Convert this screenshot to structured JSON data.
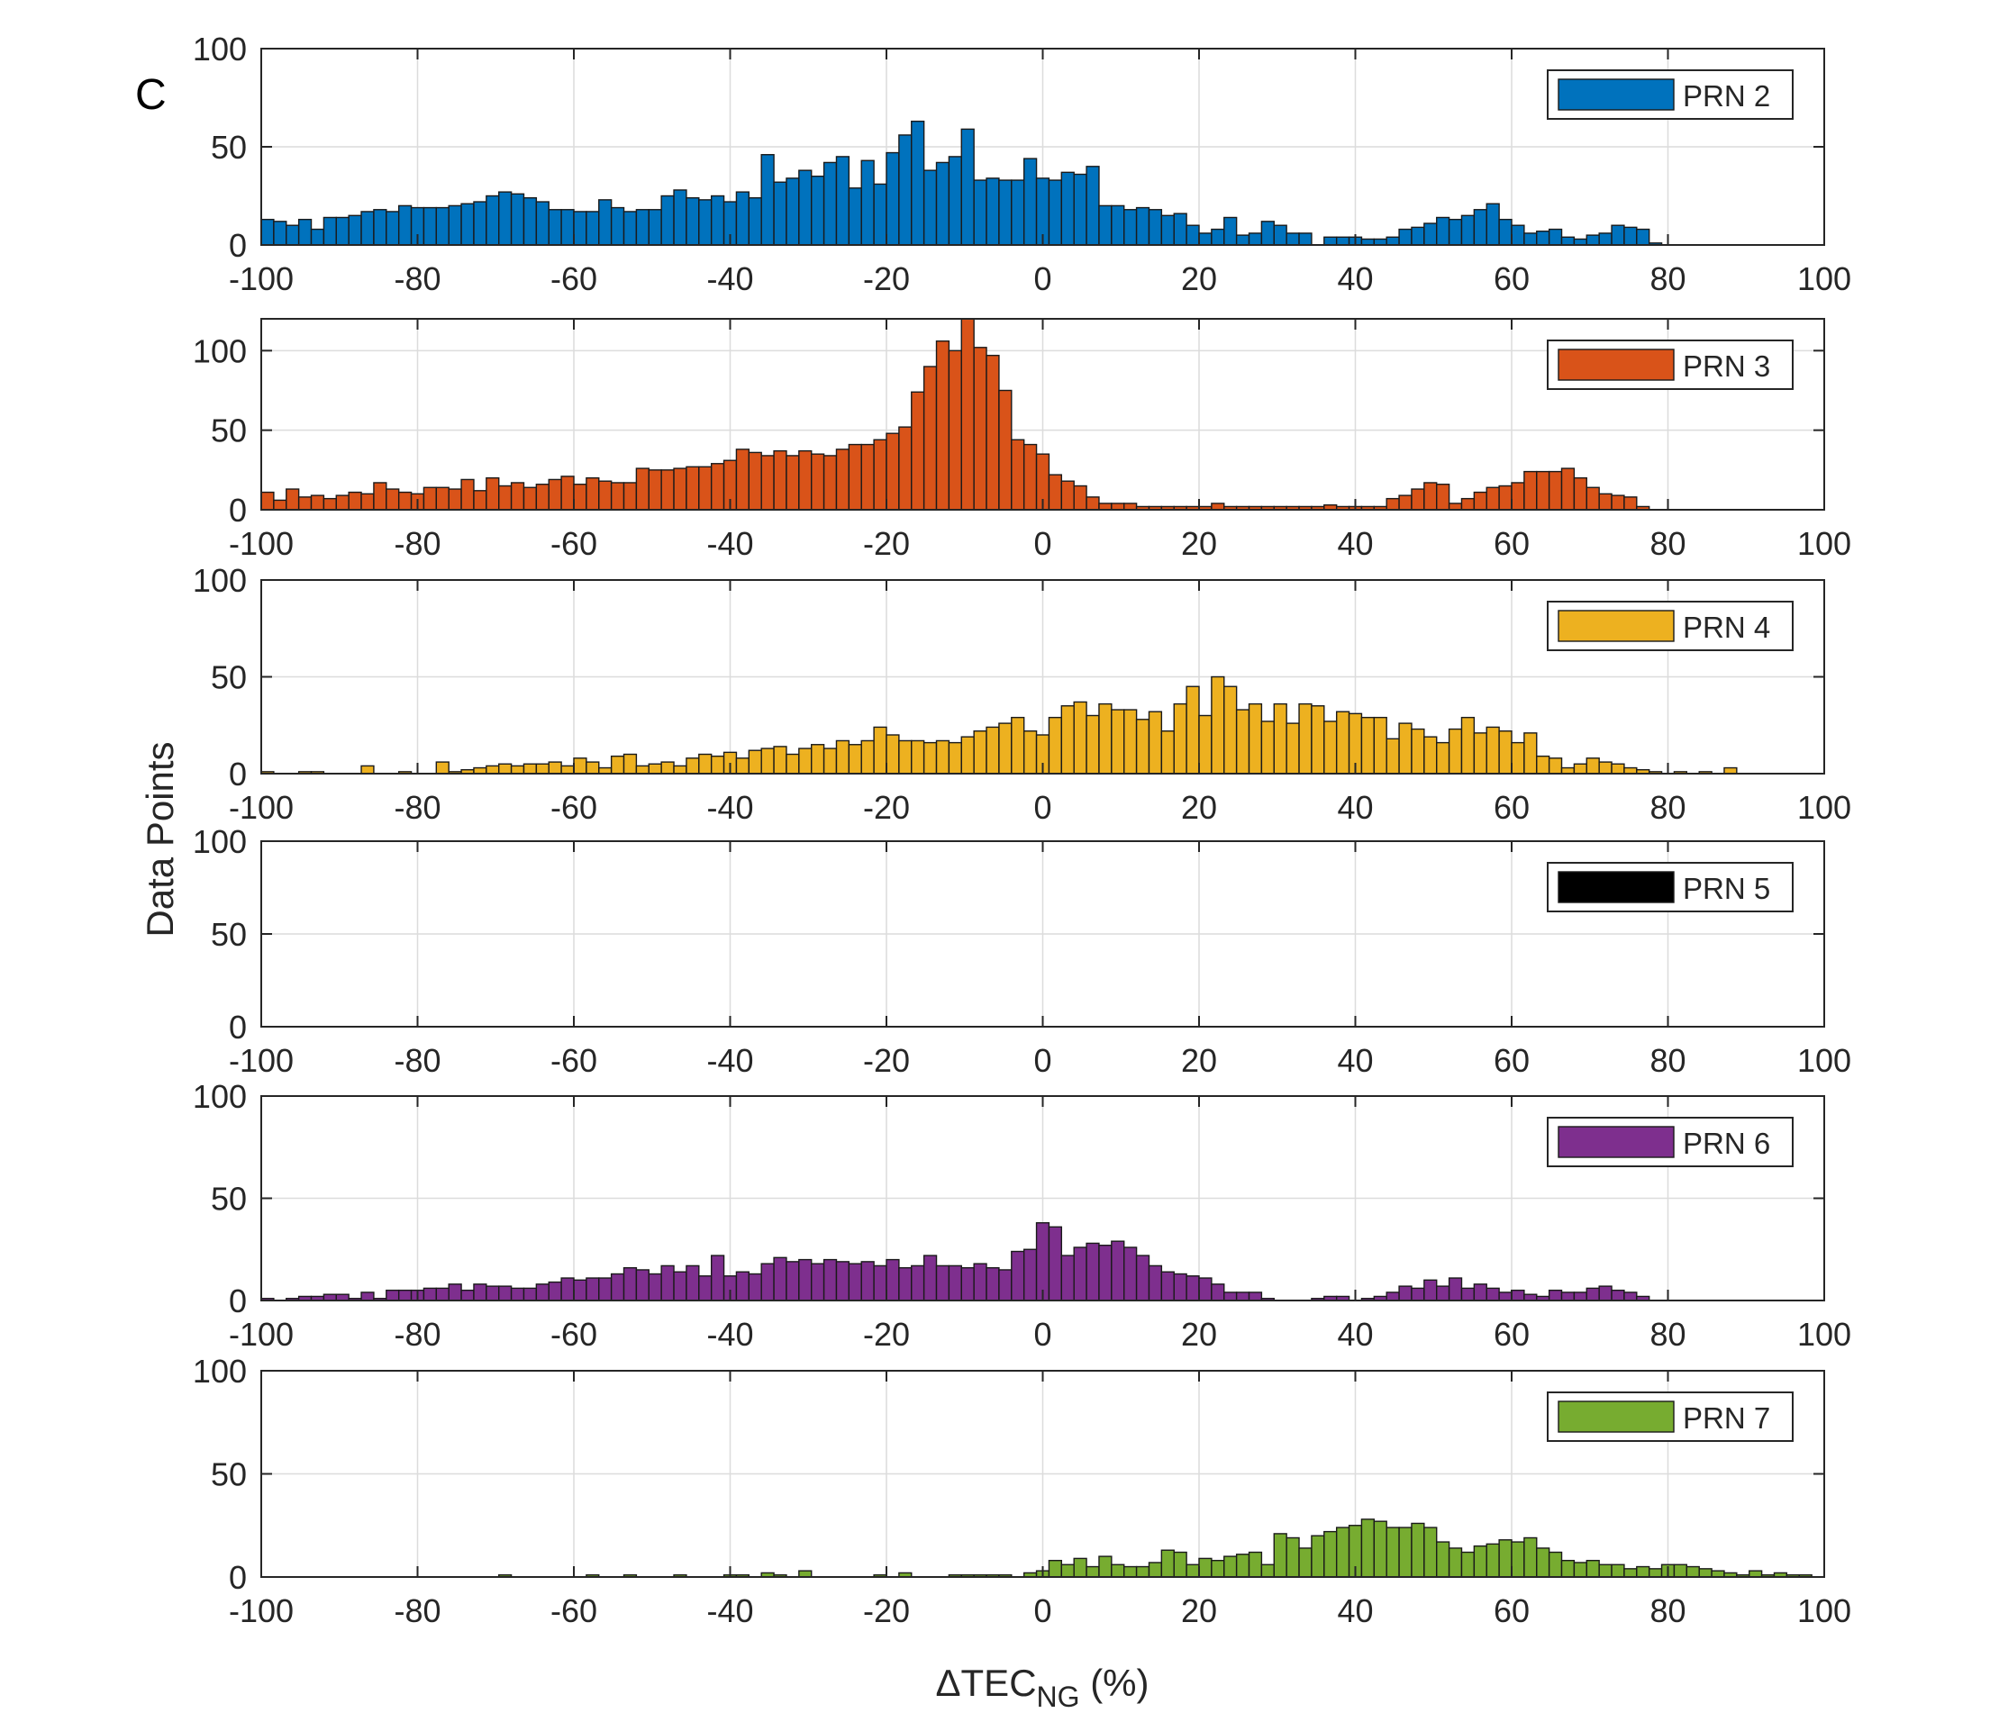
{
  "figure": {
    "panel_label": "C",
    "ylabel": "Data Points",
    "xlabel_main": "ΔTEC",
    "xlabel_sub": "NG",
    "xlabel_unit": " (%)"
  },
  "chart_data": [
    {
      "type": "bar",
      "legend": "PRN 2",
      "color": "#0072BD",
      "xlim": [
        -100,
        100
      ],
      "ylim": [
        0,
        100
      ],
      "xticks": [
        -100,
        -80,
        -60,
        -40,
        -20,
        0,
        20,
        40,
        60,
        80,
        100
      ],
      "yticks": [
        0,
        50,
        100
      ],
      "grid": true,
      "legend_position": "top-right",
      "bin_width": 1.6,
      "bin_start": -100,
      "values": [
        13,
        12,
        10,
        13,
        8,
        14,
        14,
        15,
        17,
        18,
        17,
        20,
        19,
        19,
        19,
        20,
        21,
        22,
        25,
        27,
        26,
        24,
        22,
        18,
        18,
        17,
        17,
        23,
        19,
        17,
        18,
        18,
        25,
        28,
        24,
        23,
        25,
        22,
        27,
        24,
        46,
        32,
        34,
        38,
        35,
        42,
        45,
        29,
        43,
        31,
        47,
        56,
        63,
        38,
        42,
        45,
        59,
        33,
        34,
        33,
        33,
        44,
        34,
        33,
        37,
        36,
        40,
        20,
        20,
        18,
        19,
        18,
        15,
        16,
        10,
        6,
        8,
        14,
        5,
        6,
        12,
        10,
        6,
        6,
        0,
        4,
        4,
        4,
        3,
        3,
        4,
        8,
        9,
        11,
        14,
        13,
        15,
        18,
        21,
        13,
        10,
        6,
        7,
        8,
        4,
        3,
        5,
        6,
        10,
        9,
        8,
        1
      ],
      "x_tick_labels": [
        "-100",
        "-80",
        "-60",
        "-40",
        "-20",
        "0",
        "20",
        "40",
        "60",
        "80",
        "100"
      ],
      "y_tick_labels": [
        "0",
        "50",
        "100"
      ]
    },
    {
      "type": "bar",
      "legend": "PRN 3",
      "color": "#D95319",
      "xlim": [
        -100,
        100
      ],
      "ylim": [
        0,
        120
      ],
      "xticks": [
        -100,
        -80,
        -60,
        -40,
        -20,
        0,
        20,
        40,
        60,
        80,
        100
      ],
      "yticks": [
        0,
        50,
        100
      ],
      "grid": true,
      "legend_position": "top-right",
      "bin_width": 1.6,
      "bin_start": -100,
      "values": [
        11,
        6,
        13,
        8,
        9,
        7,
        9,
        11,
        10,
        17,
        13,
        11,
        10,
        14,
        14,
        13,
        19,
        12,
        20,
        15,
        17,
        14,
        16,
        19,
        21,
        16,
        20,
        18,
        17,
        17,
        26,
        25,
        25,
        26,
        27,
        27,
        29,
        31,
        38,
        36,
        34,
        37,
        34,
        37,
        35,
        34,
        38,
        41,
        41,
        44,
        48,
        52,
        74,
        90,
        106,
        100,
        120,
        102,
        97,
        75,
        44,
        41,
        35,
        22,
        18,
        15,
        8,
        4,
        4,
        4,
        2,
        2,
        2,
        2,
        2,
        2,
        4,
        2,
        2,
        2,
        2,
        2,
        2,
        2,
        2,
        3,
        2,
        2,
        2,
        2,
        7,
        9,
        13,
        17,
        16,
        4,
        7,
        11,
        14,
        15,
        17,
        24,
        24,
        24,
        26,
        20,
        14,
        10,
        9,
        8,
        2
      ],
      "x_tick_labels": [
        "-100",
        "-80",
        "-60",
        "-40",
        "-20",
        "0",
        "20",
        "40",
        "60",
        "80",
        "100"
      ],
      "y_tick_labels": [
        "0",
        "50",
        "100"
      ]
    },
    {
      "type": "bar",
      "legend": "PRN 4",
      "color": "#EDB120",
      "xlim": [
        -100,
        100
      ],
      "ylim": [
        0,
        100
      ],
      "xticks": [
        -100,
        -80,
        -60,
        -40,
        -20,
        0,
        20,
        40,
        60,
        80,
        100
      ],
      "yticks": [
        0,
        50,
        100
      ],
      "grid": true,
      "legend_position": "top-right",
      "bin_width": 1.6,
      "bin_start": -100,
      "values": [
        1,
        0,
        0,
        1,
        1,
        0,
        0,
        0,
        4,
        0,
        0,
        1,
        0,
        0,
        6,
        1,
        2,
        3,
        4,
        5,
        4,
        5,
        5,
        6,
        4,
        8,
        6,
        3,
        9,
        10,
        4,
        5,
        6,
        4,
        8,
        10,
        9,
        11,
        8,
        12,
        13,
        14,
        10,
        13,
        15,
        13,
        17,
        15,
        17,
        24,
        20,
        17,
        17,
        16,
        17,
        16,
        19,
        22,
        24,
        26,
        29,
        22,
        20,
        29,
        35,
        37,
        30,
        36,
        33,
        33,
        28,
        32,
        22,
        36,
        45,
        30,
        50,
        45,
        33,
        36,
        27,
        36,
        26,
        36,
        35,
        27,
        32,
        31,
        29,
        29,
        18,
        26,
        23,
        19,
        16,
        23,
        29,
        21,
        24,
        22,
        16,
        21,
        9,
        8,
        3,
        5,
        8,
        6,
        5,
        3,
        2,
        1,
        0,
        1,
        0,
        1,
        0,
        3
      ],
      "x_tick_labels": [
        "-100",
        "-80",
        "-60",
        "-40",
        "-20",
        "0",
        "20",
        "40",
        "60",
        "80",
        "100"
      ],
      "y_tick_labels": [
        "0",
        "50",
        "100"
      ]
    },
    {
      "type": "bar",
      "legend": "PRN 5",
      "color": "#000000",
      "xlim": [
        -100,
        100
      ],
      "ylim": [
        0,
        100
      ],
      "xticks": [
        -100,
        -80,
        -60,
        -40,
        -20,
        0,
        20,
        40,
        60,
        80,
        100
      ],
      "yticks": [
        0,
        50,
        100
      ],
      "grid": true,
      "legend_position": "top-right",
      "bin_width": 1.6,
      "bin_start": -100,
      "values": [],
      "x_tick_labels": [
        "-100",
        "-80",
        "-60",
        "-40",
        "-20",
        "0",
        "20",
        "40",
        "60",
        "80",
        "100"
      ],
      "y_tick_labels": [
        "0",
        "50",
        "100"
      ]
    },
    {
      "type": "bar",
      "legend": "PRN 6",
      "color": "#7E2F8E",
      "xlim": [
        -100,
        100
      ],
      "ylim": [
        0,
        100
      ],
      "xticks": [
        -100,
        -80,
        -60,
        -40,
        -20,
        0,
        20,
        40,
        60,
        80,
        100
      ],
      "yticks": [
        0,
        50,
        100
      ],
      "grid": true,
      "legend_position": "top-right",
      "bin_width": 1.6,
      "bin_start": -100,
      "values": [
        1,
        0,
        1,
        2,
        2,
        3,
        3,
        1,
        4,
        1,
        5,
        5,
        5,
        6,
        6,
        8,
        5,
        8,
        7,
        7,
        6,
        6,
        8,
        9,
        11,
        10,
        11,
        11,
        13,
        16,
        15,
        13,
        17,
        14,
        17,
        12,
        22,
        12,
        14,
        13,
        18,
        21,
        19,
        20,
        18,
        20,
        19,
        18,
        19,
        17,
        20,
        16,
        17,
        22,
        17,
        17,
        16,
        18,
        16,
        15,
        24,
        25,
        38,
        36,
        22,
        26,
        28,
        27,
        29,
        26,
        22,
        17,
        14,
        13,
        12,
        11,
        8,
        4,
        4,
        4,
        1,
        0,
        0,
        0,
        1,
        2,
        2,
        0,
        1,
        2,
        4,
        7,
        6,
        10,
        7,
        11,
        6,
        8,
        6,
        4,
        5,
        3,
        2,
        5,
        4,
        4,
        6,
        7,
        5,
        4,
        2
      ],
      "x_tick_labels": [
        "-100",
        "-80",
        "-60",
        "-40",
        "-20",
        "0",
        "20",
        "40",
        "60",
        "80",
        "100"
      ],
      "y_tick_labels": [
        "0",
        "50",
        "100"
      ]
    },
    {
      "type": "bar",
      "legend": "PRN 7",
      "color": "#77AC30",
      "xlim": [
        -100,
        100
      ],
      "ylim": [
        0,
        100
      ],
      "xticks": [
        -100,
        -80,
        -60,
        -40,
        -20,
        0,
        20,
        40,
        60,
        80,
        100
      ],
      "yticks": [
        0,
        50,
        100
      ],
      "grid": true,
      "legend_position": "top-right",
      "bin_width": 1.6,
      "bin_start": -100,
      "values": [
        0,
        0,
        0,
        0,
        0,
        0,
        0,
        0,
        0,
        0,
        0,
        0,
        0,
        0,
        0,
        0,
        0,
        0,
        0,
        1,
        0,
        0,
        0,
        0,
        0,
        0,
        1,
        0,
        0,
        1,
        0,
        0,
        0,
        1,
        0,
        0,
        0,
        1,
        1,
        0,
        2,
        1,
        0,
        3,
        0,
        0,
        0,
        0,
        0,
        1,
        0,
        2,
        0,
        0,
        0,
        1,
        1,
        1,
        1,
        1,
        0,
        2,
        3,
        8,
        6,
        9,
        5,
        10,
        6,
        5,
        5,
        7,
        13,
        12,
        6,
        9,
        8,
        10,
        11,
        12,
        6,
        21,
        19,
        14,
        20,
        22,
        24,
        25,
        28,
        27,
        24,
        24,
        26,
        24,
        17,
        14,
        12,
        15,
        16,
        18,
        17,
        19,
        14,
        12,
        8,
        7,
        8,
        6,
        6,
        4,
        5,
        4,
        6,
        6,
        5,
        4,
        3,
        2,
        1,
        3,
        1,
        2,
        1,
        1,
        0,
        0,
        0,
        1,
        0
      ],
      "x_tick_labels": [
        "-100",
        "-80",
        "-60",
        "-40",
        "-20",
        "0",
        "20",
        "40",
        "60",
        "80",
        "100"
      ],
      "y_tick_labels": [
        "0",
        "50",
        "100"
      ]
    }
  ]
}
